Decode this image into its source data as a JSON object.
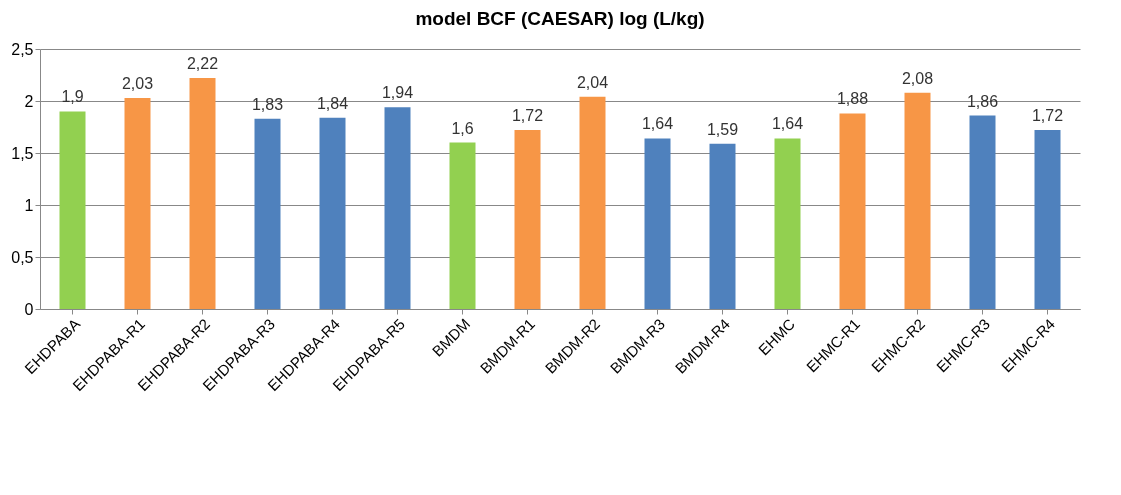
{
  "chart_data": {
    "type": "bar",
    "title": "model BCF (CAESAR) log (L/kg)",
    "categories": [
      "EHDPABA",
      "EHDPABA-R1",
      "EHDPABA-R2",
      "EHDPABA-R3",
      "EHDPABA-R4",
      "EHDPABA-R5",
      "BMDM",
      "BMDM-R1",
      "BMDM-R2",
      "BMDM-R3",
      "BMDM-R4",
      "EHMC",
      "EHMC-R1",
      "EHMC-R2",
      "EHMC-R3",
      "EHMC-R4"
    ],
    "values": [
      1.9,
      2.03,
      2.22,
      1.83,
      1.84,
      1.94,
      1.6,
      1.72,
      2.04,
      1.64,
      1.59,
      1.64,
      1.88,
      2.08,
      1.86,
      1.72
    ],
    "value_labels": [
      "1,9",
      "2,03",
      "2,22",
      "1,83",
      "1,84",
      "1,94",
      "1,6",
      "1,72",
      "2,04",
      "1,64",
      "1,59",
      "1,64",
      "1,88",
      "2,08",
      "1,86",
      "1,72"
    ],
    "colors": [
      "#92d050",
      "#f79646",
      "#f79646",
      "#4f81bd",
      "#4f81bd",
      "#4f81bd",
      "#92d050",
      "#f79646",
      "#f79646",
      "#4f81bd",
      "#4f81bd",
      "#92d050",
      "#f79646",
      "#f79646",
      "#4f81bd",
      "#4f81bd"
    ],
    "ylim": [
      0,
      2.5
    ],
    "yticks": [
      0,
      {
        "value": 0.5,
        "label": "0,5"
      },
      1,
      {
        "value": 1.5,
        "label": "1,5"
      },
      2,
      {
        "value": 2.5,
        "label": "2,5"
      }
    ],
    "grid": "y"
  }
}
